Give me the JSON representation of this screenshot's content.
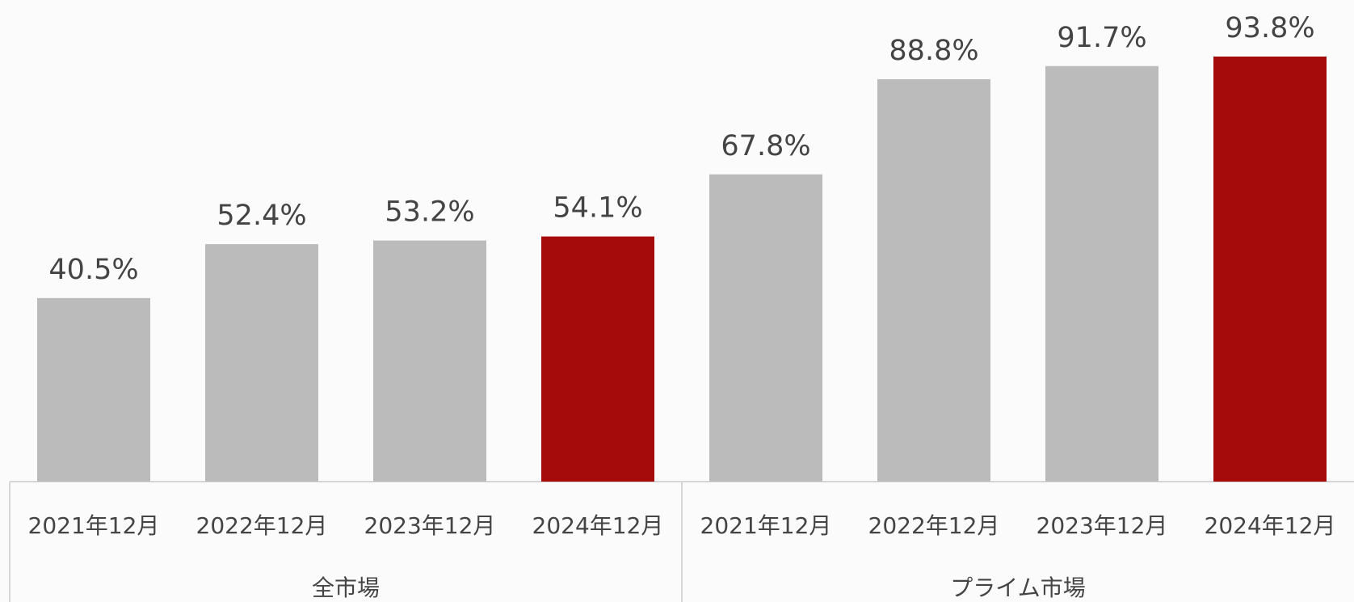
{
  "chart_data": {
    "type": "bar",
    "groups": [
      {
        "name": "全市場",
        "categories": [
          "2021年12月",
          "2022年12月",
          "2023年12月",
          "2024年12月"
        ],
        "values": [
          40.5,
          52.4,
          53.2,
          54.1
        ],
        "value_labels": [
          "40.5%",
          "52.4%",
          "53.2%",
          "54.1%"
        ],
        "colors": [
          "#bbbbbb",
          "#bbbbbb",
          "#bbbbbb",
          "#a50b0b"
        ]
      },
      {
        "name": "プライム市場",
        "categories": [
          "2021年12月",
          "2022年12月",
          "2023年12月",
          "2024年12月"
        ],
        "values": [
          67.8,
          88.8,
          91.7,
          93.8
        ],
        "value_labels": [
          "67.8%",
          "88.8%",
          "91.7%",
          "93.8%"
        ],
        "colors": [
          "#bbbbbb",
          "#bbbbbb",
          "#bbbbbb",
          "#a50b0b"
        ]
      }
    ]
  }
}
